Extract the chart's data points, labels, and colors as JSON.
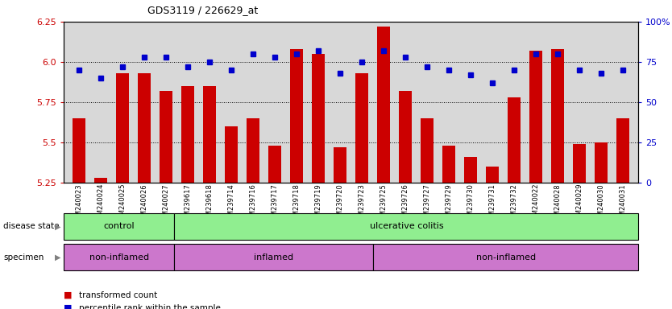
{
  "title": "GDS3119 / 226629_at",
  "samples": [
    "GSM240023",
    "GSM240024",
    "GSM240025",
    "GSM240026",
    "GSM240027",
    "GSM239617",
    "GSM239618",
    "GSM239714",
    "GSM239716",
    "GSM239717",
    "GSM239718",
    "GSM239719",
    "GSM239720",
    "GSM239723",
    "GSM239725",
    "GSM239726",
    "GSM239727",
    "GSM239729",
    "GSM239730",
    "GSM239731",
    "GSM239732",
    "GSM240022",
    "GSM240028",
    "GSM240029",
    "GSM240030",
    "GSM240031"
  ],
  "bar_values": [
    5.65,
    5.28,
    5.93,
    5.93,
    5.82,
    5.85,
    5.85,
    5.6,
    5.65,
    5.48,
    6.08,
    6.05,
    5.47,
    5.93,
    6.22,
    5.82,
    5.65,
    5.48,
    5.41,
    5.35,
    5.78,
    6.07,
    6.08,
    5.49,
    5.5,
    5.65
  ],
  "percentile_values": [
    70,
    65,
    72,
    78,
    78,
    72,
    75,
    70,
    80,
    78,
    80,
    82,
    68,
    75,
    82,
    78,
    72,
    70,
    67,
    62,
    70,
    80,
    80,
    70,
    68,
    70
  ],
  "ylim_left": [
    5.25,
    6.25
  ],
  "ylim_right": [
    0,
    100
  ],
  "yticks_left": [
    5.25,
    5.5,
    5.75,
    6.0,
    6.25
  ],
  "yticks_right": [
    0,
    25,
    50,
    75,
    100
  ],
  "bar_color": "#cc0000",
  "dot_color": "#0000cc",
  "background_color": "#ffffff",
  "plot_bg_color": "#d8d8d8",
  "disease_state": [
    {
      "label": "control",
      "count": 5,
      "color": "#90ee90"
    },
    {
      "label": "ulcerative colitis",
      "count": 21,
      "color": "#90ee90"
    }
  ],
  "specimen": [
    {
      "label": "non-inflamed",
      "count": 5,
      "color": "#cc77cc"
    },
    {
      "label": "inflamed",
      "count": 9,
      "color": "#cc77cc"
    },
    {
      "label": "non-inflamed",
      "count": 12,
      "color": "#cc77cc"
    }
  ],
  "n_samples": 26
}
